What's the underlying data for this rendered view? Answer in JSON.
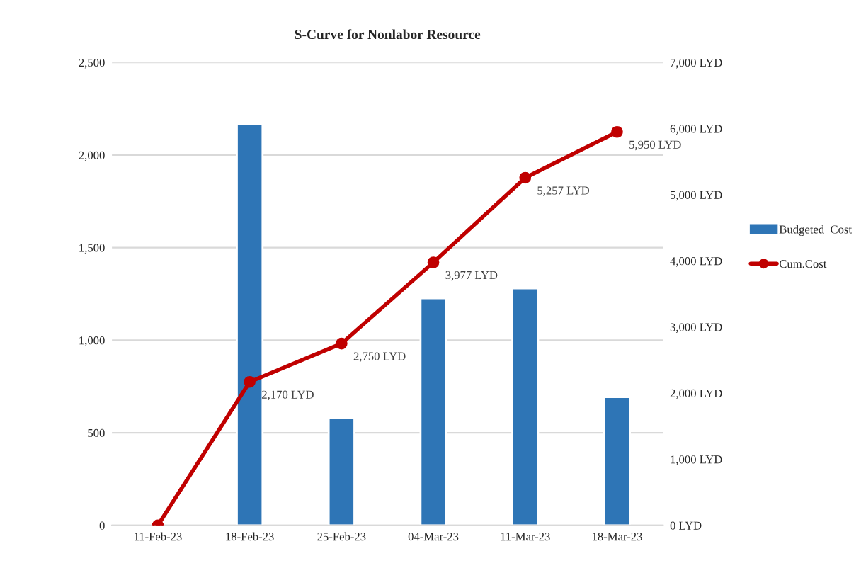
{
  "chart_data": {
    "type": "bar",
    "title": "S-Curve for Nonlabor Resource",
    "categories": [
      "11-Feb-23",
      "18-Feb-23",
      "25-Feb-23",
      "04-Mar-23",
      "11-Mar-23",
      "18-Mar-23"
    ],
    "series": [
      {
        "name": "Budgeted  Cost",
        "color": "#2e75b6",
        "values": [
          null,
          2170,
          580,
          1227,
          1280,
          693
        ]
      },
      {
        "name": "Cum.Cost",
        "type": "line",
        "axis": "y2",
        "color": "#c00000",
        "marker": "circle",
        "values": [
          0,
          2170,
          2750,
          3977,
          5257,
          5950
        ],
        "value_labels": [
          null,
          "2,170 LYD",
          "2,750 LYD",
          "3,977 LYD",
          "5,257 LYD",
          "5,950 LYD"
        ]
      }
    ],
    "ylim": [
      0,
      2500
    ],
    "yticks": [
      0,
      {
        "value": 500,
        "label": "500"
      },
      {
        "value": 1000,
        "label": "1,000"
      },
      {
        "value": 1500,
        "label": "1,500"
      },
      {
        "value": 2000,
        "label": "2,000"
      },
      {
        "value": 2500,
        "label": "2,500"
      }
    ],
    "y2lim": [
      0,
      7000
    ],
    "y2ticks": [
      {
        "value": 0,
        "label": "0 LYD"
      },
      {
        "value": 1000,
        "label": "1,000 LYD"
      },
      {
        "value": 2000,
        "label": "2,000 LYD"
      },
      {
        "value": 3000,
        "label": "3,000 LYD"
      },
      {
        "value": 4000,
        "label": "4,000 LYD"
      },
      {
        "value": 5000,
        "label": "5,000 LYD"
      },
      {
        "value": 6000,
        "label": "6,000 LYD"
      },
      {
        "value": 7000,
        "label": "7,000 LYD"
      }
    ],
    "grid": "y",
    "legend": "right"
  }
}
